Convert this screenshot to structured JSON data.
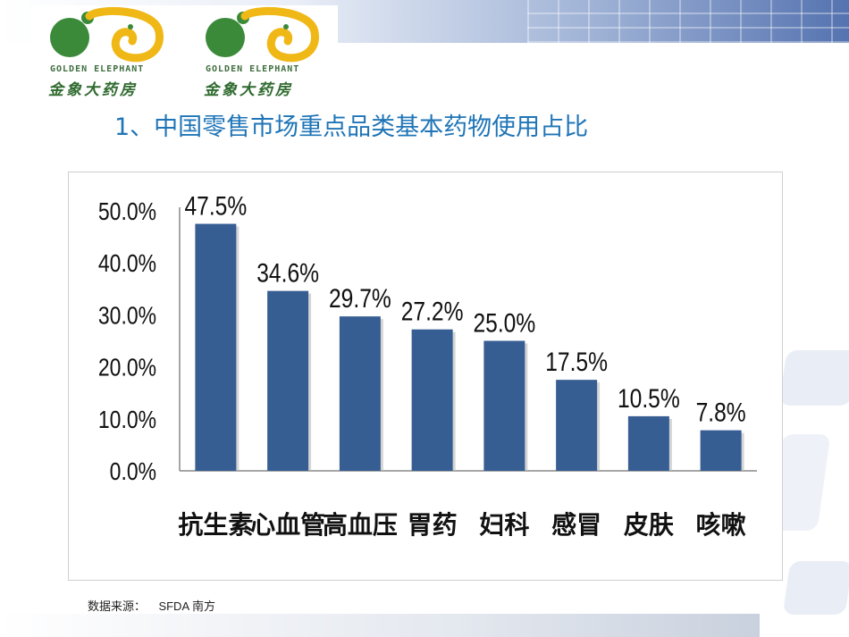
{
  "logos": {
    "text_en": "GOLDEN ELEPHANT",
    "text_cn": "金象大药房",
    "icon": "golden-elephant-logo-icon",
    "colors": {
      "gold": "#f0b816",
      "green": "#3b8a3a"
    }
  },
  "title": "1、中国零售市场重点品类基本药物使用占比",
  "chart_data": {
    "type": "bar",
    "categories": [
      "抗生素",
      "心血管",
      "高血压",
      "胃药",
      "妇科",
      "感冒",
      "皮肤",
      "咳嗽"
    ],
    "values": [
      47.5,
      34.6,
      29.7,
      27.2,
      25.0,
      17.5,
      10.5,
      7.8
    ],
    "data_labels": [
      "47.5%",
      "34.6%",
      "29.7%",
      "27.2%",
      "25.0%",
      "17.5%",
      "10.5%",
      "7.8%"
    ],
    "yticks": [
      "0.0%",
      "10.0%",
      "20.0%",
      "30.0%",
      "40.0%",
      "50.0%"
    ],
    "ylim": [
      0,
      50
    ],
    "bar_color": "#375e92",
    "grid": false,
    "legend": "none"
  },
  "source": "数据来源：    SFDA 南方"
}
